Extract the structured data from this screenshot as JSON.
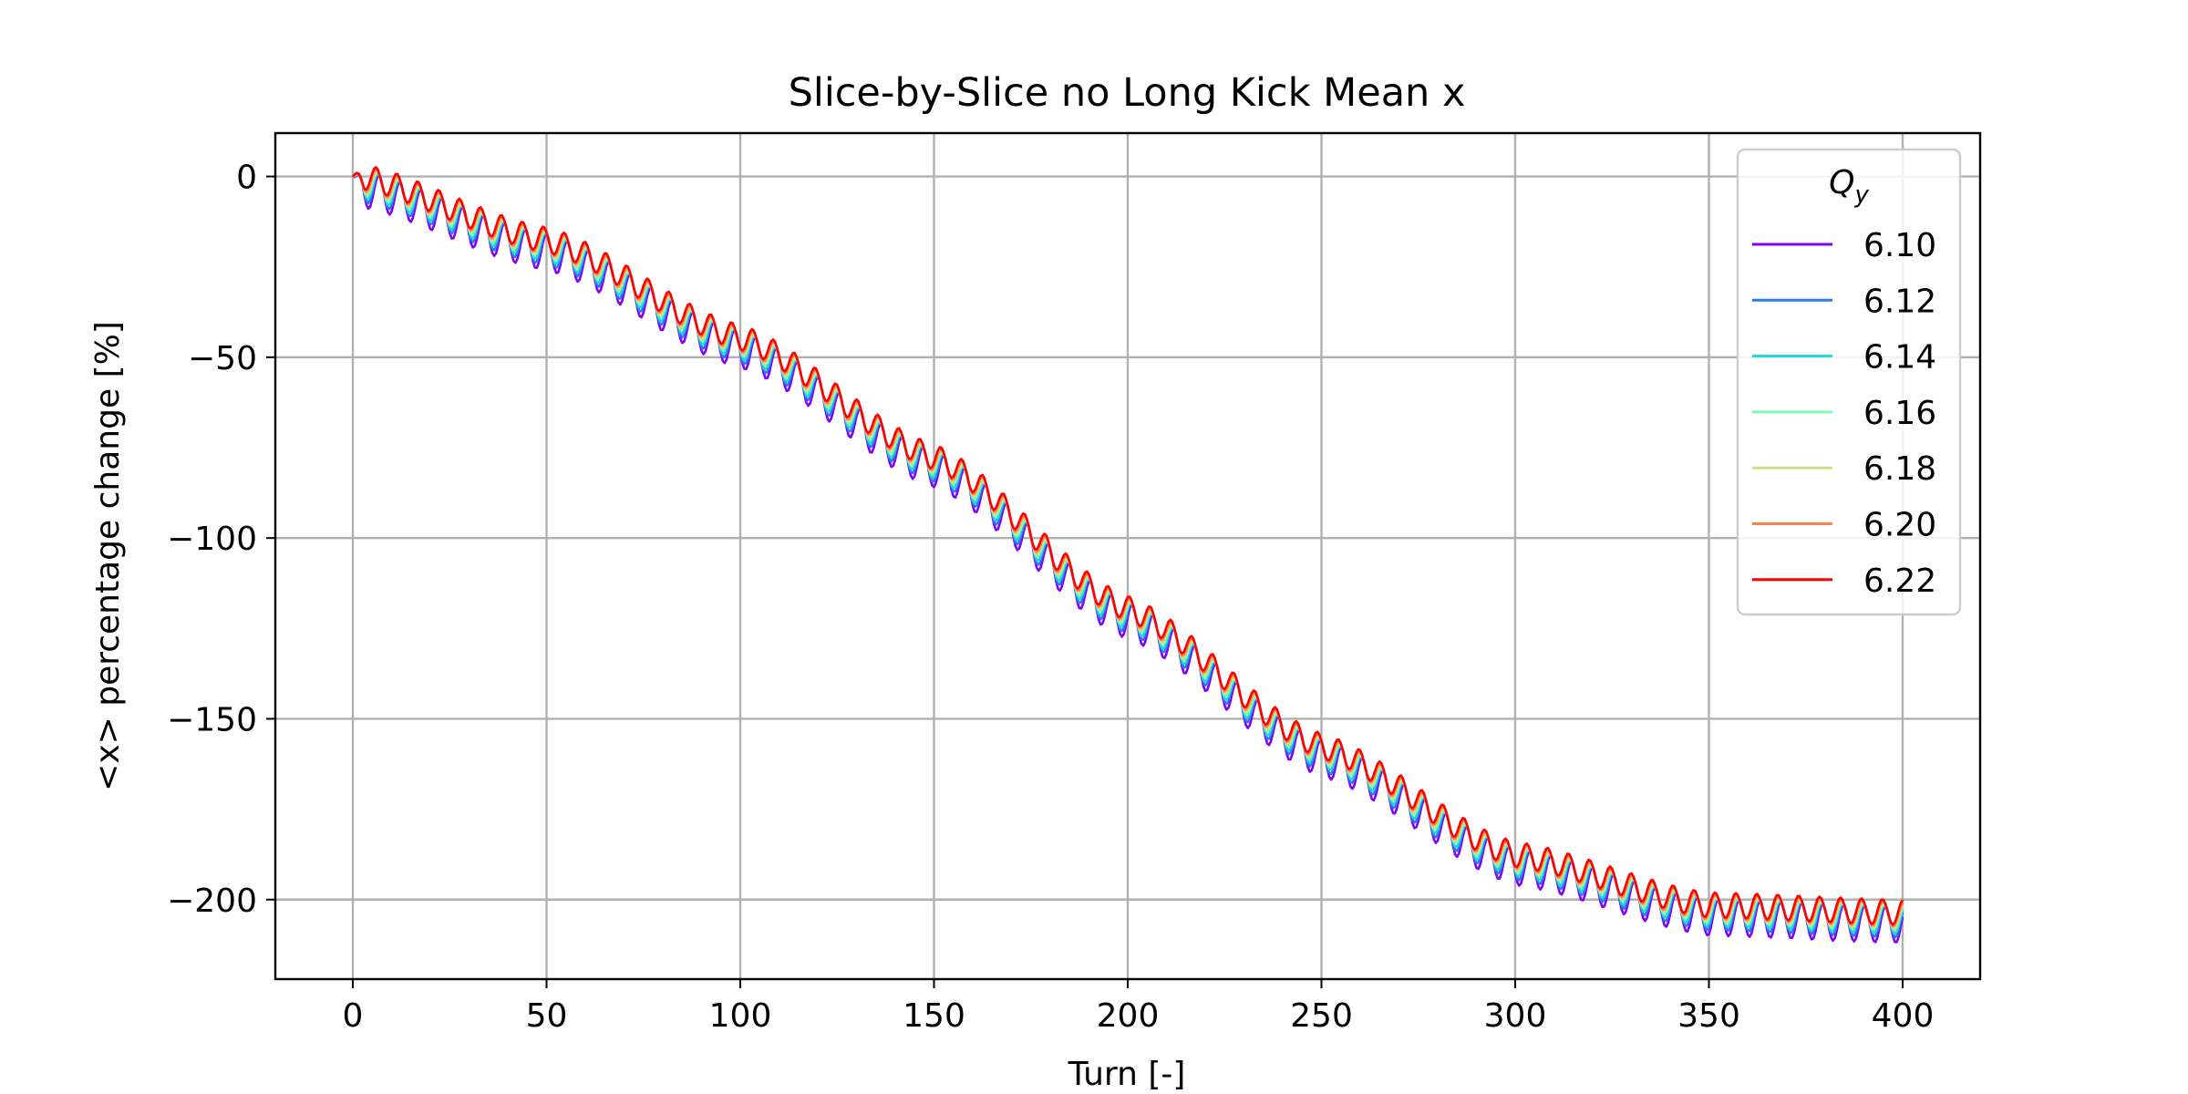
{
  "chart_data": {
    "type": "line",
    "title": "Slice-by-Slice no Long Kick Mean x",
    "xlabel": "Turn [-]",
    "ylabel": "<x> percentage change [%]",
    "xlim": [
      -20,
      420
    ],
    "ylim": [
      -222,
      12
    ],
    "xticks": [
      0,
      50,
      100,
      150,
      200,
      250,
      300,
      350,
      400
    ],
    "yticks": [
      0,
      -50,
      -100,
      -150,
      -200
    ],
    "grid": true,
    "legend": {
      "title_base": "Q",
      "title_sub": "y",
      "placement": "upper-right",
      "entries": [
        "6.10",
        "6.12",
        "6.14",
        "6.16",
        "6.18",
        "6.20",
        "6.22"
      ]
    },
    "trend": {
      "description_points": [
        [
          0,
          0
        ],
        [
          50,
          -18
        ],
        [
          100,
          -45
        ],
        [
          150,
          -78
        ],
        [
          200,
          -120
        ],
        [
          250,
          -158
        ],
        [
          300,
          -188
        ],
        [
          350,
          -202
        ],
        [
          400,
          -204
        ]
      ]
    },
    "series": [
      {
        "name": "6.10",
        "color": "#7f00ff",
        "oscillation_amplitude": 5,
        "period": 5.4,
        "bias": -3
      },
      {
        "name": "6.12",
        "color": "#2a7ce6",
        "oscillation_amplitude": 4.5,
        "period": 5.4,
        "bias": -2
      },
      {
        "name": "6.14",
        "color": "#20d6e0",
        "oscillation_amplitude": 4,
        "period": 5.4,
        "bias": -1.5
      },
      {
        "name": "6.16",
        "color": "#7ffab0",
        "oscillation_amplitude": 3.5,
        "period": 5.4,
        "bias": -1
      },
      {
        "name": "6.18",
        "color": "#d4dc7f",
        "oscillation_amplitude": 3.5,
        "period": 5.4,
        "bias": -0.5
      },
      {
        "name": "6.20",
        "color": "#ff7f4a",
        "oscillation_amplitude": 3.5,
        "period": 5.4,
        "bias": 0
      },
      {
        "name": "6.22",
        "color": "#ff0000",
        "oscillation_amplitude": 3.5,
        "period": 5.4,
        "bias": 0.5
      }
    ]
  }
}
